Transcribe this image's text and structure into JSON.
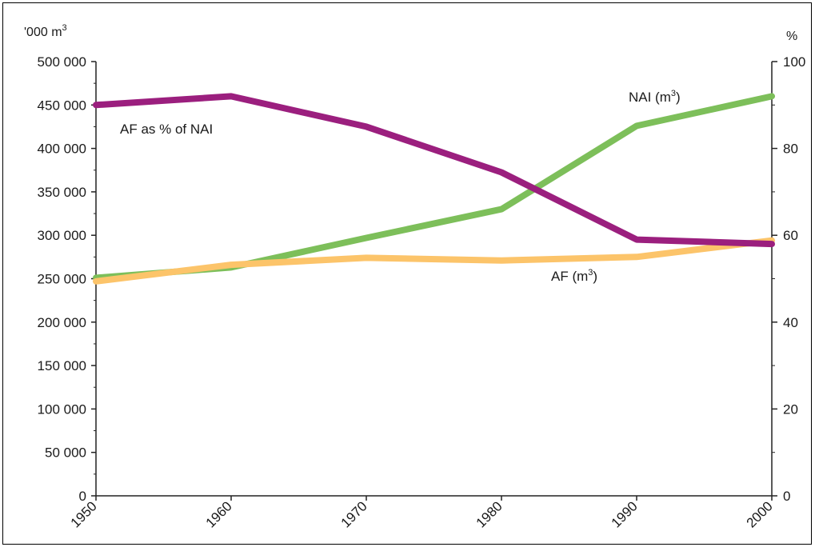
{
  "chart_data": {
    "type": "line",
    "x": [
      1950,
      1960,
      1970,
      1980,
      1990,
      2000
    ],
    "x_ticks": [
      "1950",
      "1960",
      "1970",
      "1980",
      "1990",
      "2000"
    ],
    "left_axis": {
      "unit": "'000 m",
      "unit_sup": "3",
      "range": [
        0,
        500000
      ],
      "ticks": [
        "0",
        "50 000",
        "100 000",
        "150 000",
        "200 000",
        "250 000",
        "300 000",
        "350 000",
        "400 000",
        "450 000",
        "500 000"
      ]
    },
    "right_axis": {
      "unit": "%",
      "range": [
        0,
        100
      ],
      "ticks": [
        "0",
        "20",
        "40",
        "60",
        "80",
        "100"
      ]
    },
    "series": [
      {
        "name": "NAI (m",
        "name_sup": "3",
        "name_close": ")",
        "axis": "left",
        "color": "#7dbf5a",
        "values": [
          251000,
          263000,
          297000,
          330000,
          426000,
          460000
        ]
      },
      {
        "name": "AF (m",
        "name_sup": "3",
        "name_close": ")",
        "axis": "left",
        "color": "#fcc46a",
        "values": [
          247000,
          266000,
          274000,
          271000,
          275000,
          294000
        ]
      },
      {
        "name": "AF as % of NAI",
        "axis": "right",
        "color": "#9b1f7e",
        "values": [
          90,
          92,
          85,
          74.5,
          59,
          58
        ]
      }
    ],
    "grid": false
  }
}
